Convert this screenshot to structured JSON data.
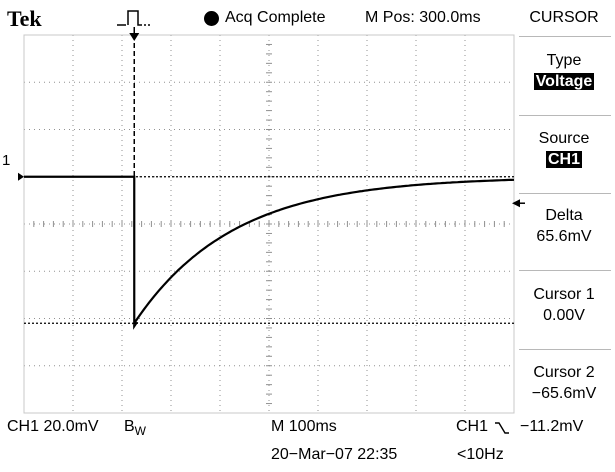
{
  "header": {
    "brand": "Tek",
    "trigger_icon": "trigger-pulse-icon",
    "status": "Acq Complete",
    "position": "M Pos: 300.0ms"
  },
  "menu": {
    "title": "CURSOR",
    "items": [
      {
        "label": "Type",
        "value": "Voltage",
        "highlighted": true
      },
      {
        "label": "Source",
        "value": "CH1",
        "highlighted": true
      },
      {
        "label": "Delta",
        "value": "65.6mV",
        "highlighted": false
      },
      {
        "label": "Cursor 1",
        "value": "0.00V",
        "highlighted": false
      },
      {
        "label": "Cursor 2",
        "value": "−65.6mV",
        "highlighted": false
      }
    ]
  },
  "channel_marker": "1",
  "bottom": {
    "ch1_scale": "CH1  20.0mV",
    "bw": "B",
    "bw_sub": "W",
    "timebase": "M 100ms",
    "trigger": "CH1",
    "trigger_level": "−11.2mV",
    "date": "20−Mar−07 22:35",
    "freq": "<10Hz"
  },
  "waveform": {
    "description_units": "divisions",
    "baseline_div": 1.0,
    "drop_time_div": 2.25,
    "min_div": -2.1,
    "decay_tau_div": 2.0
  },
  "colors": {
    "trace": "#000000",
    "grid_dot": "#909090",
    "background": "#ffffff"
  }
}
